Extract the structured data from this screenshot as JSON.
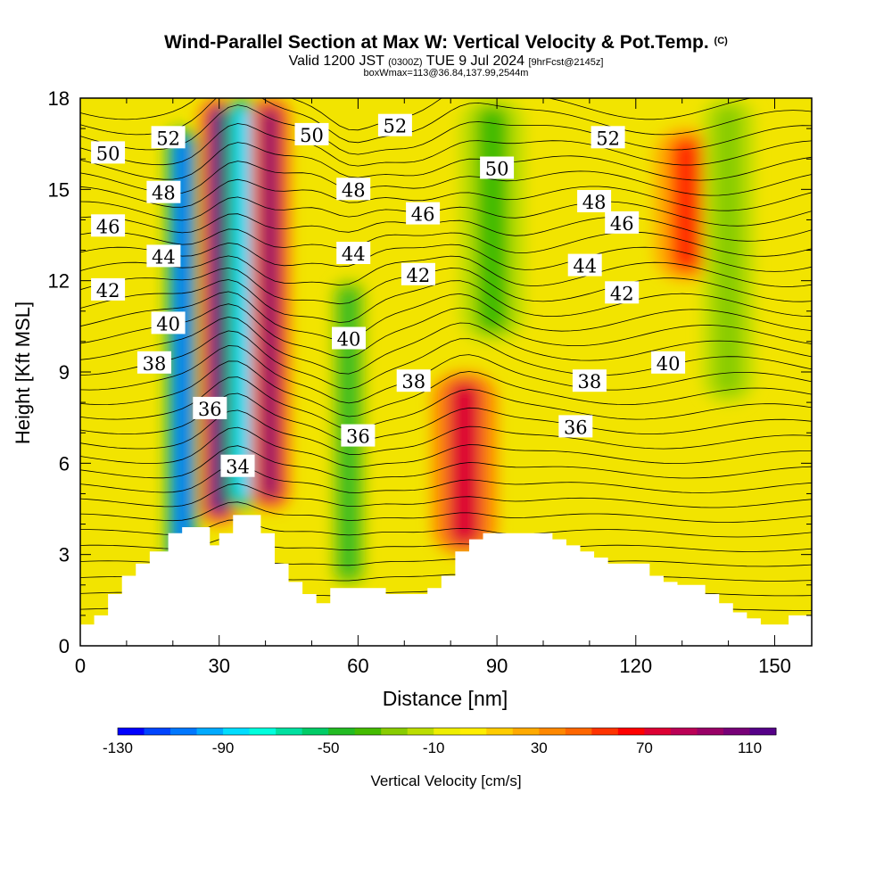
{
  "chart_data": {
    "type": "heatmap",
    "title": "Wind-Parallel Section at Max W: Vertical Velocity & Pot.Temp.",
    "title_mark": "(C)",
    "subtitle_valid": "Valid 1200 JST",
    "subtitle_utc": "(0300Z)",
    "subtitle_date": "TUE 9 Jul 2024",
    "subtitle_fcst": "[9hrFcst@2145z]",
    "subtitle_box": "boxWmax=113@36.84,137.99,2544m",
    "xlabel": "Distance [nm]",
    "ylabel": "Height [Kft MSL]",
    "xlim": [
      0,
      158
    ],
    "ylim": [
      0,
      18
    ],
    "x_ticks": [
      0,
      30,
      60,
      90,
      120,
      150
    ],
    "x_tick_labels": [
      "0",
      "30",
      "60",
      "90",
      "120",
      "150"
    ],
    "y_ticks": [
      0,
      3,
      6,
      9,
      12,
      15,
      18
    ],
    "y_tick_labels": [
      "0",
      "3",
      "6",
      "9",
      "12",
      "15",
      "18"
    ],
    "colorbar": {
      "label": "Vertical Velocity [cm/s]",
      "min": -130,
      "max": 120,
      "step": 10,
      "tick_values": [
        -130,
        -90,
        -50,
        -10,
        30,
        70,
        110
      ],
      "tick_labels": [
        "-130",
        "-90",
        "-50",
        "-10",
        "30",
        "70",
        "110"
      ],
      "colors": [
        "#0000ff",
        "#0044ff",
        "#0077ff",
        "#00aaff",
        "#00ddff",
        "#00ffdd",
        "#00e0a0",
        "#00cc66",
        "#22bb22",
        "#44bb00",
        "#88cc00",
        "#bbdd00",
        "#eeee00",
        "#ffee00",
        "#ffcc00",
        "#ffaa00",
        "#ff8800",
        "#ff6600",
        "#ff3300",
        "#ff0000",
        "#dd0033",
        "#bb0055",
        "#990066",
        "#770077",
        "#550088"
      ]
    },
    "terrain": {
      "x": [
        0,
        3,
        6,
        9,
        12,
        15,
        19,
        22,
        25,
        28,
        30,
        33,
        36,
        39,
        42,
        45,
        48,
        51,
        54,
        57,
        60,
        63,
        66,
        69,
        72,
        75,
        78,
        81,
        84,
        87,
        90,
        93,
        96,
        99,
        102,
        105,
        108,
        111,
        114,
        117,
        120,
        123,
        126,
        129,
        132,
        135,
        138,
        141,
        144,
        147,
        150,
        153,
        156,
        158
      ],
      "height": [
        0.7,
        1.0,
        1.7,
        2.3,
        2.7,
        3.1,
        3.7,
        3.9,
        3.9,
        3.3,
        3.7,
        4.3,
        4.3,
        3.7,
        2.7,
        2.1,
        1.7,
        1.4,
        1.9,
        1.9,
        1.9,
        1.9,
        1.7,
        1.7,
        1.7,
        1.9,
        2.3,
        3.1,
        3.5,
        3.7,
        3.7,
        3.7,
        3.7,
        3.7,
        3.5,
        3.3,
        3.1,
        2.9,
        2.7,
        2.7,
        2.7,
        2.3,
        2.1,
        2.0,
        2.0,
        1.7,
        1.4,
        1.1,
        0.9,
        0.7,
        0.7,
        1.0,
        1.0,
        1.0
      ]
    },
    "vertical_velocity_features": [
      {
        "x": 22,
        "z0": 2.5,
        "z1": 17,
        "w": -110,
        "width": 2.5,
        "label": "downdraft"
      },
      {
        "x": 30,
        "z0": 4,
        "z1": 18,
        "w": 110,
        "width": 3,
        "label": "updraft"
      },
      {
        "x": 35,
        "z0": 4.5,
        "z1": 18,
        "w": -90,
        "width": 2.5,
        "label": "downdraft"
      },
      {
        "x": 41,
        "z0": 4.5,
        "z1": 18,
        "w": 90,
        "width": 3,
        "label": "updraft"
      },
      {
        "x": 58,
        "z0": 2,
        "z1": 12,
        "w": -45,
        "width": 2.5,
        "label": "downdraft"
      },
      {
        "x": 83,
        "z0": 3,
        "z1": 9,
        "w": 75,
        "width": 5,
        "label": "updraft"
      },
      {
        "x": 89,
        "z0": 10,
        "z1": 18,
        "w": -40,
        "width": 5,
        "label": "downdraft"
      },
      {
        "x": 131,
        "z0": 12,
        "z1": 17,
        "w": 55,
        "width": 5,
        "label": "updraft"
      },
      {
        "x": 140,
        "z0": 8,
        "z1": 18,
        "w": -25,
        "width": 4,
        "label": "downdraft"
      }
    ],
    "theta_contour_labels": [
      {
        "value": "52",
        "x": 19,
        "z": 16.7
      },
      {
        "value": "50",
        "x": 6,
        "z": 16.2
      },
      {
        "value": "48",
        "x": 18,
        "z": 14.9
      },
      {
        "value": "46",
        "x": 6,
        "z": 13.8
      },
      {
        "value": "44",
        "x": 18,
        "z": 12.8
      },
      {
        "value": "42",
        "x": 6,
        "z": 11.7
      },
      {
        "value": "40",
        "x": 19,
        "z": 10.6
      },
      {
        "value": "38",
        "x": 16,
        "z": 9.3
      },
      {
        "value": "36",
        "x": 28,
        "z": 7.8
      },
      {
        "value": "34",
        "x": 34,
        "z": 5.9
      },
      {
        "value": "52",
        "x": 68,
        "z": 17.1
      },
      {
        "value": "50",
        "x": 50,
        "z": 16.8
      },
      {
        "value": "48",
        "x": 59,
        "z": 15.0
      },
      {
        "value": "46",
        "x": 74,
        "z": 14.2
      },
      {
        "value": "44",
        "x": 59,
        "z": 12.9
      },
      {
        "value": "42",
        "x": 73,
        "z": 12.2
      },
      {
        "value": "40",
        "x": 58,
        "z": 10.1
      },
      {
        "value": "38",
        "x": 72,
        "z": 8.7
      },
      {
        "value": "36",
        "x": 60,
        "z": 6.9
      },
      {
        "value": "50",
        "x": 90,
        "z": 15.7
      },
      {
        "value": "48",
        "x": 111,
        "z": 14.6
      },
      {
        "value": "46",
        "x": 117,
        "z": 13.9
      },
      {
        "value": "44",
        "x": 109,
        "z": 12.5
      },
      {
        "value": "42",
        "x": 117,
        "z": 11.6
      },
      {
        "value": "40",
        "x": 127,
        "z": 9.3
      },
      {
        "value": "38",
        "x": 110,
        "z": 8.7
      },
      {
        "value": "36",
        "x": 107,
        "z": 7.2
      },
      {
        "value": "52",
        "x": 114,
        "z": 16.7
      }
    ]
  }
}
